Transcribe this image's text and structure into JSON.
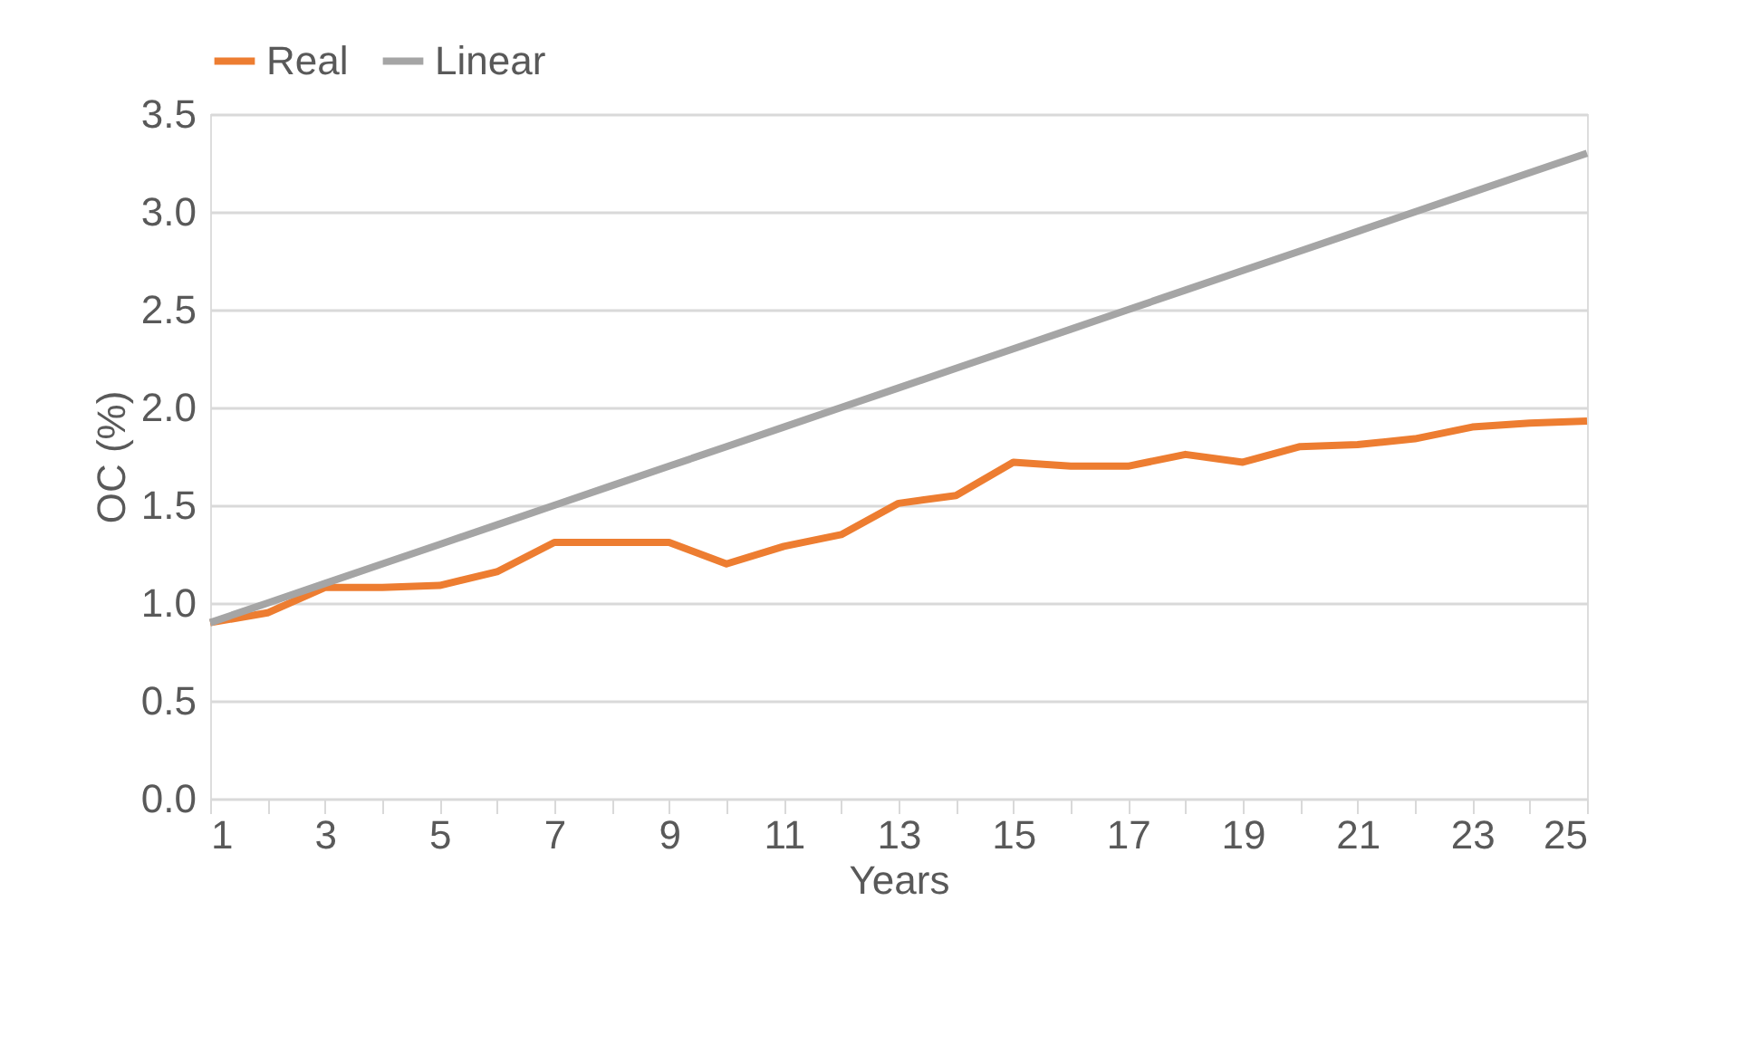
{
  "chart_data": {
    "type": "line",
    "xlabel": "Years",
    "ylabel": "OC (%)",
    "x": [
      1,
      2,
      3,
      4,
      5,
      6,
      7,
      8,
      9,
      10,
      11,
      12,
      13,
      14,
      15,
      16,
      17,
      18,
      19,
      20,
      21,
      22,
      23,
      24,
      25
    ],
    "series": [
      {
        "name": "Real",
        "color": "#ed7d31",
        "values": [
          0.9,
          0.95,
          1.08,
          1.08,
          1.09,
          1.16,
          1.31,
          1.31,
          1.31,
          1.2,
          1.29,
          1.35,
          1.51,
          1.55,
          1.72,
          1.7,
          1.7,
          1.76,
          1.72,
          1.8,
          1.81,
          1.84,
          1.9,
          1.92,
          1.93
        ]
      },
      {
        "name": "Linear",
        "color": "#a5a5a5",
        "values": [
          0.9,
          1.0,
          1.1,
          1.2,
          1.3,
          1.4,
          1.5,
          1.6,
          1.7,
          1.8,
          1.9,
          2.0,
          2.1,
          2.2,
          2.3,
          2.4,
          2.5,
          2.6,
          2.7,
          2.8,
          2.9,
          3.0,
          3.1,
          3.2,
          3.3
        ]
      }
    ],
    "xlim": [
      1,
      25
    ],
    "xticks": [
      1,
      {
        "value": 2,
        "label": null
      },
      3,
      {
        "value": 4,
        "label": null
      },
      5,
      {
        "value": 6,
        "label": null
      },
      7,
      {
        "value": 8,
        "label": null
      },
      9,
      {
        "value": 10,
        "label": null
      },
      11,
      {
        "value": 12,
        "label": null
      },
      13,
      {
        "value": 14,
        "label": null
      },
      15,
      {
        "value": 16,
        "label": null
      },
      17,
      {
        "value": 18,
        "label": null
      },
      19,
      {
        "value": 20,
        "label": null
      },
      21,
      {
        "value": 22,
        "label": null
      },
      23,
      {
        "value": 24,
        "label": null
      },
      25
    ],
    "ylim": [
      0,
      3.5
    ],
    "yticks": [
      {
        "value": 0,
        "label": "0.0"
      },
      {
        "value": 0.5,
        "label": "0.5"
      },
      {
        "value": 1,
        "label": "1.0"
      },
      {
        "value": 1.5,
        "label": "1.5"
      },
      {
        "value": 2,
        "label": "2.0"
      },
      {
        "value": 2.5,
        "label": "2.5"
      },
      {
        "value": 3,
        "label": "3.0"
      },
      {
        "value": 3.5,
        "label": "3.5"
      }
    ],
    "grid": "y",
    "legend": "top",
    "marker": "none",
    "line_style": "solid"
  }
}
